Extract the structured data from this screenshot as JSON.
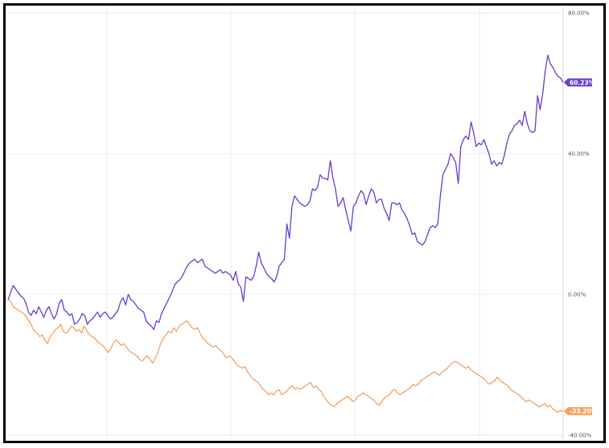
{
  "chart_data": {
    "type": "line",
    "title": "",
    "xlabel": "",
    "ylabel": "",
    "ylim": [
      -40,
      80
    ],
    "grid": true,
    "y_ticks": [
      "80.00%",
      "40.00%",
      "0.00%",
      "-40.00%"
    ],
    "y_tick_values": [
      80,
      40,
      0,
      -40
    ],
    "series": [
      {
        "color": "#6a3cc8",
        "end_label": "60.23%",
        "values": [
          -1.5,
          0.5,
          2.5,
          1.5,
          0.5,
          -0.5,
          -1.0,
          -2.5,
          -5.0,
          -6.0,
          -4.5,
          -5.5,
          -3.5,
          -5.0,
          -6.5,
          -4.5,
          -3.5,
          -5.5,
          -7.0,
          -5.5,
          -2.5,
          -1.5,
          -4.5,
          -5.0,
          -6.0,
          -5.5,
          -8.5,
          -8.0,
          -7.0,
          -5.5,
          -6.0,
          -8.5,
          -7.5,
          -7.0,
          -6.0,
          -5.0,
          -6.5,
          -5.5,
          -5.0,
          -6.0,
          -7.0,
          -6.5,
          -5.5,
          -4.5,
          -2.0,
          -1.0,
          -3.0,
          0.0,
          -1.5,
          -2.0,
          -3.0,
          -4.0,
          -4.5,
          -5.0,
          -7.5,
          -8.5,
          -9.0,
          -10.0,
          -7.5,
          -8.0,
          -5.5,
          -4.0,
          -2.5,
          -1.0,
          0.5,
          2.5,
          3.5,
          4.0,
          5.0,
          6.5,
          8.0,
          9.0,
          9.5,
          10.0,
          9.0,
          9.5,
          10.0,
          8.0,
          7.5,
          7.0,
          6.5,
          6.0,
          6.5,
          7.0,
          6.0,
          6.5,
          6.0,
          5.5,
          4.0,
          6.5,
          3.0,
          2.0,
          -2.0,
          5.0,
          4.5,
          4.0,
          5.0,
          8.0,
          12.0,
          9.0,
          7.5,
          6.0,
          5.0,
          4.5,
          3.5,
          5.0,
          8.0,
          9.0,
          10.0,
          20.0,
          16.0,
          25.0,
          28.0,
          27.0,
          26.0,
          25.5,
          25.0,
          25.5,
          26.5,
          30.0,
          29.5,
          30.5,
          34.0,
          33.0,
          33.0,
          32.5,
          38.0,
          33.0,
          30.0,
          25.0,
          26.0,
          27.5,
          24.0,
          21.0,
          18.0,
          25.0,
          26.0,
          28.0,
          29.5,
          28.5,
          25.5,
          28.0,
          30.0,
          29.0,
          26.0,
          27.0,
          27.0,
          24.5,
          23.0,
          21.0,
          26.0,
          26.0,
          25.5,
          26.0,
          24.0,
          23.0,
          21.5,
          19.5,
          17.0,
          17.5,
          15.0,
          14.5,
          14.0,
          15.0,
          17.0,
          19.0,
          19.5,
          19.0,
          20.0,
          28.0,
          34.0,
          35.5,
          37.0,
          40.0,
          39.0,
          37.5,
          31.5,
          42.0,
          44.0,
          45.0,
          44.0,
          49.0,
          46.0,
          42.0,
          43.0,
          42.5,
          44.0,
          42.0,
          40.0,
          37.0,
          38.0,
          36.5,
          37.5,
          37.0,
          39.5,
          43.0,
          45.5,
          46.5,
          48.0,
          48.5,
          49.5,
          48.0,
          52.0,
          48.5,
          46.5,
          46.0,
          46.5,
          56.5,
          52.5,
          57.0,
          63.5,
          68.0,
          65.5,
          64.5,
          63.0,
          62.0,
          61.5,
          60.23
        ]
      },
      {
        "color": "#f4a161",
        "end_label": "-33.20%",
        "values": [
          -1.5,
          -2.0,
          -3.5,
          -4.0,
          -4.5,
          -5.0,
          -5.5,
          -6.5,
          -7.5,
          -9.0,
          -10.5,
          -11.0,
          -12.0,
          -11.5,
          -13.0,
          -14.0,
          -12.0,
          -11.0,
          -10.0,
          -9.5,
          -8.5,
          -10.5,
          -11.0,
          -10.5,
          -9.0,
          -9.5,
          -10.5,
          -10.0,
          -11.0,
          -9.0,
          -10.5,
          -11.5,
          -12.0,
          -12.5,
          -13.5,
          -14.0,
          -14.5,
          -15.5,
          -16.5,
          -15.5,
          -14.0,
          -13.0,
          -13.5,
          -14.5,
          -14.0,
          -15.0,
          -16.0,
          -16.5,
          -17.0,
          -17.5,
          -18.5,
          -19.0,
          -18.0,
          -17.5,
          -18.5,
          -19.5,
          -18.0,
          -16.5,
          -14.0,
          -12.5,
          -11.5,
          -10.5,
          -11.0,
          -9.5,
          -10.5,
          -9.0,
          -8.5,
          -8.0,
          -7.5,
          -8.5,
          -9.5,
          -10.0,
          -9.5,
          -11.0,
          -12.5,
          -13.0,
          -14.0,
          -14.5,
          -15.0,
          -14.5,
          -15.5,
          -16.0,
          -17.0,
          -18.0,
          -17.5,
          -18.0,
          -19.0,
          -20.0,
          -20.5,
          -21.0,
          -20.5,
          -22.0,
          -23.0,
          -24.0,
          -24.5,
          -25.0,
          -26.0,
          -27.0,
          -27.5,
          -28.5,
          -28.0,
          -28.5,
          -27.5,
          -27.0,
          -28.5,
          -28.0,
          -27.5,
          -26.5,
          -26.0,
          -27.0,
          -26.5,
          -27.0,
          -26.5,
          -26.0,
          -25.5,
          -25.0,
          -26.5,
          -26.0,
          -27.0,
          -27.5,
          -29.0,
          -30.0,
          -31.0,
          -31.5,
          -32.0,
          -31.0,
          -30.5,
          -30.0,
          -29.5,
          -29.0,
          -29.5,
          -30.5,
          -30.0,
          -29.0,
          -28.5,
          -28.0,
          -28.5,
          -29.0,
          -29.5,
          -30.0,
          -31.0,
          -31.5,
          -30.5,
          -29.5,
          -29.0,
          -28.5,
          -27.5,
          -27.0,
          -28.0,
          -28.5,
          -28.0,
          -27.5,
          -27.0,
          -26.5,
          -25.5,
          -26.0,
          -25.5,
          -24.5,
          -24.0,
          -23.5,
          -23.0,
          -22.5,
          -22.0,
          -22.5,
          -23.0,
          -22.0,
          -21.5,
          -21.0,
          -20.0,
          -19.5,
          -19.0,
          -19.5,
          -20.0,
          -20.5,
          -21.0,
          -20.5,
          -21.5,
          -22.0,
          -22.5,
          -23.0,
          -23.5,
          -24.0,
          -25.0,
          -25.5,
          -25.0,
          -24.5,
          -23.5,
          -24.5,
          -25.0,
          -25.5,
          -26.0,
          -27.0,
          -27.5,
          -28.0,
          -28.5,
          -29.0,
          -30.0,
          -30.5,
          -30.0,
          -30.5,
          -31.0,
          -31.5,
          -32.0,
          -31.5,
          -31.0,
          -32.0,
          -31.5,
          -32.5,
          -33.0,
          -33.5,
          -33.0,
          -33.2
        ]
      }
    ]
  }
}
